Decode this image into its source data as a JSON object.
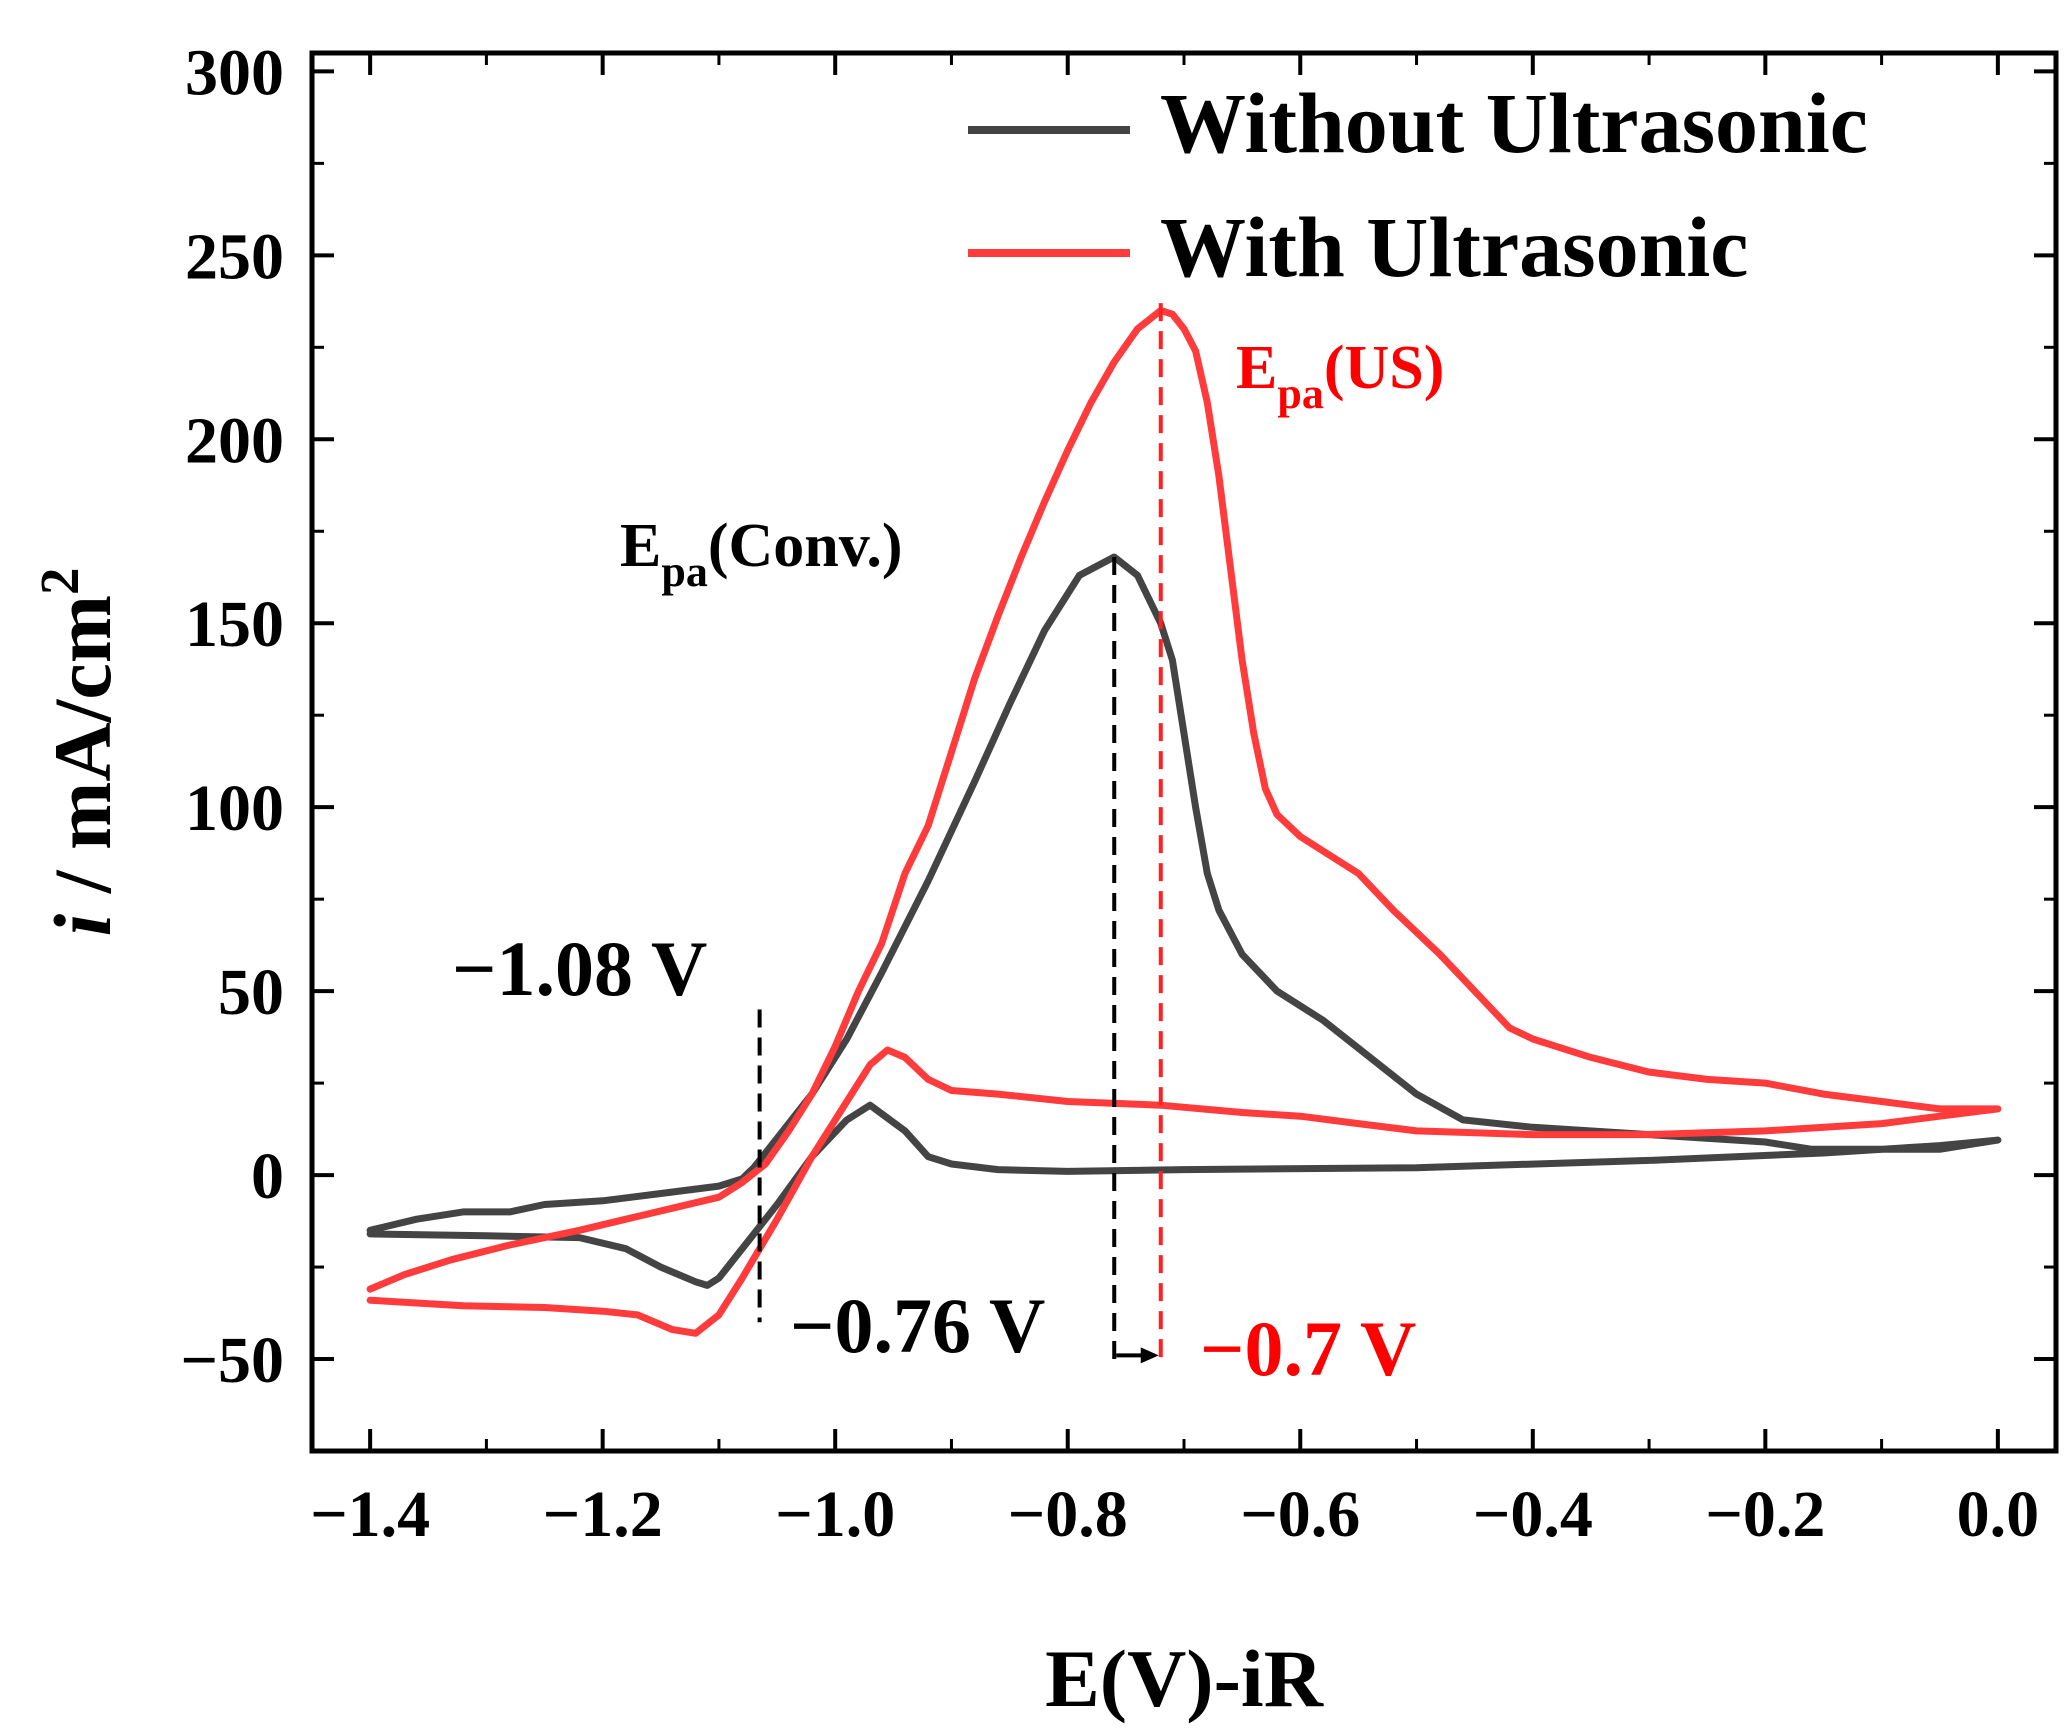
{
  "chart_data": {
    "type": "line",
    "xlabel": "E(V)-iR",
    "ylabel": {
      "italic": "i",
      "rest": " / mA/cm",
      "sup": "2"
    },
    "xlim": [
      -1.45,
      0.05
    ],
    "ylim": [
      -75,
      305
    ],
    "xticks": [
      -1.4,
      -1.2,
      -1.0,
      -0.8,
      -0.6,
      -0.4,
      -0.2,
      0.0
    ],
    "xtick_labels": [
      "−1.4",
      "−1.2",
      "−1.0",
      "−0.8",
      "−0.6",
      "−0.4",
      "−0.2",
      "0.0"
    ],
    "yticks": [
      -50,
      0,
      50,
      100,
      150,
      200,
      250,
      300
    ],
    "ytick_labels": [
      "−50",
      "0",
      "50",
      "100",
      "150",
      "200",
      "250",
      "300"
    ],
    "legend_position": "top-right",
    "grid": false,
    "series": [
      {
        "name": "Without Ultrasonic",
        "color": "#444444",
        "points": [
          [
            -1.4,
            -15
          ],
          [
            -1.36,
            -12
          ],
          [
            -1.32,
            -10
          ],
          [
            -1.29,
            -10
          ],
          [
            -1.28,
            -10
          ],
          [
            -1.25,
            -8
          ],
          [
            -1.2,
            -7
          ],
          [
            -1.15,
            -5
          ],
          [
            -1.1,
            -3
          ],
          [
            -1.08,
            -1
          ],
          [
            -1.07,
            2
          ],
          [
            -1.05,
            10
          ],
          [
            -1.02,
            22
          ],
          [
            -0.99,
            37
          ],
          [
            -0.96,
            55
          ],
          [
            -0.92,
            80
          ],
          [
            -0.88,
            107
          ],
          [
            -0.85,
            128
          ],
          [
            -0.82,
            148
          ],
          [
            -0.79,
            163
          ],
          [
            -0.76,
            168
          ],
          [
            -0.74,
            163
          ],
          [
            -0.72,
            150
          ],
          [
            -0.71,
            140
          ],
          [
            -0.7,
            120
          ],
          [
            -0.69,
            100
          ],
          [
            -0.68,
            82
          ],
          [
            -0.67,
            72
          ],
          [
            -0.65,
            60
          ],
          [
            -0.62,
            50
          ],
          [
            -0.58,
            42
          ],
          [
            -0.54,
            32
          ],
          [
            -0.5,
            22
          ],
          [
            -0.46,
            15
          ],
          [
            -0.4,
            13
          ],
          [
            -0.3,
            11
          ],
          [
            -0.2,
            9
          ],
          [
            -0.16,
            7
          ],
          [
            -0.1,
            7
          ],
          [
            -0.05,
            7
          ],
          [
            -0.03,
            8
          ],
          [
            0.0,
            9.5
          ],
          [
            -0.05,
            8
          ],
          [
            -0.15,
            6
          ],
          [
            -0.3,
            4
          ],
          [
            -0.5,
            2
          ],
          [
            -0.7,
            1.5
          ],
          [
            -0.8,
            1
          ],
          [
            -0.86,
            1.5
          ],
          [
            -0.9,
            3
          ],
          [
            -0.92,
            5
          ],
          [
            -0.94,
            12
          ],
          [
            -0.97,
            19
          ],
          [
            -0.99,
            15
          ],
          [
            -1.02,
            5
          ],
          [
            -1.05,
            -8
          ],
          [
            -1.08,
            -20
          ],
          [
            -1.1,
            -28
          ],
          [
            -1.11,
            -30
          ],
          [
            -1.12,
            -29
          ],
          [
            -1.15,
            -25
          ],
          [
            -1.18,
            -20
          ],
          [
            -1.22,
            -17
          ],
          [
            -1.3,
            -16.5
          ],
          [
            -1.4,
            -16
          ]
        ]
      },
      {
        "name": "With Ultrasonic",
        "color": "#ff3b3b",
        "points": [
          [
            -1.4,
            -31
          ],
          [
            -1.37,
            -27
          ],
          [
            -1.33,
            -23
          ],
          [
            -1.28,
            -19
          ],
          [
            -1.22,
            -15
          ],
          [
            -1.18,
            -12
          ],
          [
            -1.14,
            -9
          ],
          [
            -1.1,
            -6
          ],
          [
            -1.08,
            -2
          ],
          [
            -1.06,
            3
          ],
          [
            -1.04,
            12
          ],
          [
            -1.02,
            22
          ],
          [
            -1.0,
            35
          ],
          [
            -0.98,
            50
          ],
          [
            -0.96,
            63
          ],
          [
            -0.94,
            82
          ],
          [
            -0.92,
            95
          ],
          [
            -0.9,
            115
          ],
          [
            -0.88,
            135
          ],
          [
            -0.86,
            152
          ],
          [
            -0.84,
            168
          ],
          [
            -0.82,
            183
          ],
          [
            -0.8,
            197
          ],
          [
            -0.78,
            210
          ],
          [
            -0.76,
            221
          ],
          [
            -0.74,
            230
          ],
          [
            -0.72,
            235
          ],
          [
            -0.71,
            234
          ],
          [
            -0.7,
            230
          ],
          [
            -0.69,
            224
          ],
          [
            -0.68,
            210
          ],
          [
            -0.67,
            190
          ],
          [
            -0.66,
            165
          ],
          [
            -0.65,
            140
          ],
          [
            -0.64,
            120
          ],
          [
            -0.63,
            105
          ],
          [
            -0.62,
            98
          ],
          [
            -0.6,
            92
          ],
          [
            -0.58,
            88
          ],
          [
            -0.55,
            82
          ],
          [
            -0.52,
            72
          ],
          [
            -0.48,
            60
          ],
          [
            -0.45,
            50
          ],
          [
            -0.42,
            40
          ],
          [
            -0.4,
            37
          ],
          [
            -0.35,
            32
          ],
          [
            -0.3,
            28
          ],
          [
            -0.25,
            26
          ],
          [
            -0.2,
            25
          ],
          [
            -0.15,
            22
          ],
          [
            -0.1,
            20
          ],
          [
            -0.05,
            18
          ],
          [
            0.0,
            18
          ],
          [
            -0.05,
            16
          ],
          [
            -0.1,
            14
          ],
          [
            -0.2,
            12
          ],
          [
            -0.3,
            11
          ],
          [
            -0.4,
            11
          ],
          [
            -0.5,
            12
          ],
          [
            -0.55,
            14
          ],
          [
            -0.6,
            16
          ],
          [
            -0.65,
            17
          ],
          [
            -0.72,
            19
          ],
          [
            -0.8,
            20
          ],
          [
            -0.86,
            22
          ],
          [
            -0.9,
            23
          ],
          [
            -0.92,
            26
          ],
          [
            -0.94,
            32
          ],
          [
            -0.955,
            34
          ],
          [
            -0.97,
            30
          ],
          [
            -0.99,
            20
          ],
          [
            -1.02,
            5
          ],
          [
            -1.05,
            -12
          ],
          [
            -1.08,
            -28
          ],
          [
            -1.1,
            -38
          ],
          [
            -1.12,
            -43
          ],
          [
            -1.14,
            -42
          ],
          [
            -1.17,
            -38
          ],
          [
            -1.2,
            -37
          ],
          [
            -1.25,
            -36
          ],
          [
            -1.32,
            -35.5
          ],
          [
            -1.4,
            -34
          ]
        ]
      }
    ],
    "annotations": {
      "conv_label": {
        "main": "E",
        "sub": "pa",
        "tail": "(Conv.)",
        "color": "#000000"
      },
      "us_label": {
        "main": "E",
        "sub": "pa",
        "tail": "(US)",
        "color": "#ff0000"
      },
      "onset_label": {
        "text": "−1.08 V",
        "color": "#000000",
        "x": -1.065
      },
      "conv_peak_label": {
        "text": "−0.76 V",
        "color": "#000000",
        "x": -0.76
      },
      "us_peak_label": {
        "text": "−0.7 V",
        "color": "#ff0000",
        "x": -0.72
      }
    }
  }
}
